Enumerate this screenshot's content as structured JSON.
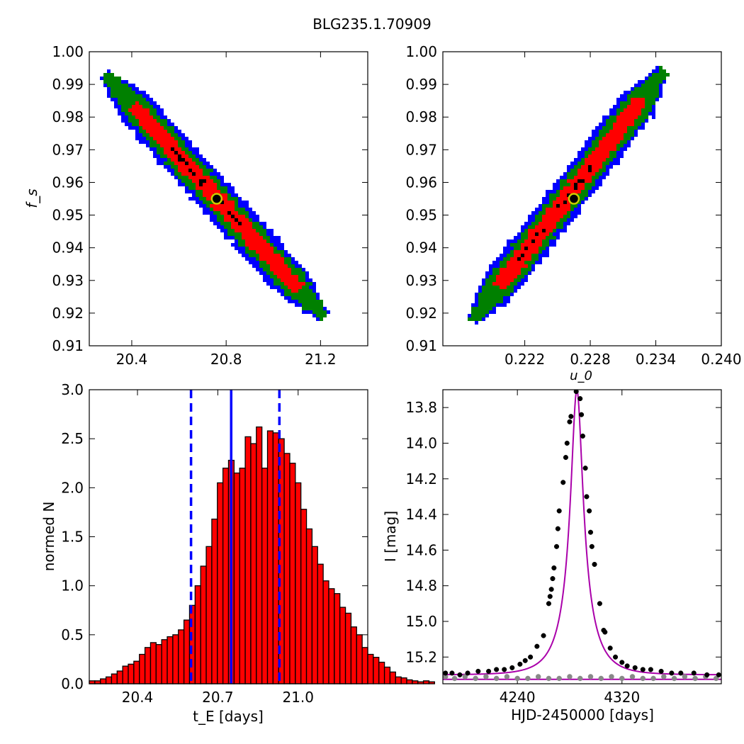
{
  "figure": {
    "title": "BLG235.1.70909"
  },
  "colors": {
    "blue": "#0000ff",
    "green": "#008000",
    "red": "#ff0000",
    "black": "#000000",
    "marker": "#cccc00",
    "model": "#aa00aa",
    "gray": "#888888"
  },
  "chart_data": [
    {
      "type": "heatmap",
      "panel": "top-left",
      "xlabel": "",
      "ylabel": "f_s",
      "xlim": [
        20.22,
        21.4
      ],
      "ylim": [
        0.91,
        1.0
      ],
      "xticks": [
        "20.4",
        "20.8",
        "21.2"
      ],
      "yticks": [
        "0.91",
        "0.92",
        "0.93",
        "0.94",
        "0.95",
        "0.96",
        "0.97",
        "0.98",
        "0.99",
        "1.00"
      ],
      "levels": [
        "blue",
        "green",
        "red",
        "black"
      ],
      "ridge": [
        [
          20.3,
          0.992
        ],
        [
          20.8,
          0.955
        ],
        [
          21.2,
          0.92
        ]
      ],
      "best_fit": {
        "x": 20.76,
        "y": 0.955
      }
    },
    {
      "type": "heatmap",
      "panel": "top-right",
      "xlabel": "u_0",
      "ylabel": "",
      "xlim": [
        0.2145,
        0.24
      ],
      "ylim": [
        0.91,
        1.0
      ],
      "xticks": [
        "0.222",
        "0.228",
        "0.234",
        "0.240"
      ],
      "yticks": [
        "0.91",
        "0.92",
        "0.93",
        "0.94",
        "0.95",
        "0.96",
        "0.97",
        "0.98",
        "0.99",
        "1.00"
      ],
      "levels": [
        "blue",
        "green",
        "red",
        "black"
      ],
      "ridge": [
        [
          0.2175,
          0.919
        ],
        [
          0.2265,
          0.955
        ],
        [
          0.2345,
          0.993
        ]
      ],
      "best_fit": {
        "x": 0.2265,
        "y": 0.955
      }
    },
    {
      "type": "bar",
      "panel": "bottom-left",
      "xlabel": "t_E [days]",
      "ylabel": "normed N",
      "xlim": [
        20.22,
        21.26
      ],
      "ylim": [
        0,
        3.0
      ],
      "xticks": [
        "20.4",
        "20.7",
        "21.0"
      ],
      "yticks": [
        "0.0",
        "0.5",
        "1.0",
        "1.5",
        "2.0",
        "2.5",
        "3.0"
      ],
      "bin_start": 20.22,
      "bin_width": 0.0208,
      "values": [
        0.03,
        0.03,
        0.05,
        0.07,
        0.1,
        0.13,
        0.18,
        0.2,
        0.23,
        0.3,
        0.37,
        0.42,
        0.4,
        0.45,
        0.48,
        0.5,
        0.55,
        0.65,
        0.8,
        1.0,
        1.2,
        1.4,
        1.68,
        2.05,
        2.2,
        2.28,
        2.15,
        2.2,
        2.52,
        2.45,
        2.62,
        2.2,
        2.58,
        2.56,
        2.5,
        2.35,
        2.25,
        2.05,
        1.78,
        1.58,
        1.4,
        1.22,
        1.05,
        0.97,
        0.92,
        0.78,
        0.72,
        0.58,
        0.5,
        0.37,
        0.3,
        0.27,
        0.22,
        0.17,
        0.12,
        0.07,
        0.06,
        0.04,
        0.03,
        0.02,
        0.03,
        0.02
      ],
      "vlines": {
        "median": 20.75,
        "lower": 20.6,
        "upper": 20.93
      }
    },
    {
      "type": "line",
      "panel": "bottom-right",
      "xlabel": "HJD-2450000 [days]",
      "ylabel": "I [mag]",
      "xlim": [
        4183,
        4396
      ],
      "ylim": [
        15.35,
        13.7
      ],
      "y_inverted": true,
      "xticks": [
        "4240",
        "4320"
      ],
      "yticks": [
        "13.8",
        "14.0",
        "14.2",
        "14.4",
        "14.6",
        "14.8",
        "15.0",
        "15.2"
      ],
      "model": {
        "t0": 4285.5,
        "base_mag": 15.3,
        "peak_mag": 13.7,
        "tE": 20.75,
        "u0": 0.2265
      },
      "series": [
        {
          "values": [
            [
              4185,
              15.29
            ],
            [
              4190,
              15.29
            ],
            [
              4196,
              15.3
            ],
            [
              4202,
              15.29
            ],
            [
              4210,
              15.28
            ],
            [
              4218,
              15.28
            ],
            [
              4224,
              15.27
            ],
            [
              4230,
              15.27
            ],
            [
              4236,
              15.26
            ],
            [
              4242,
              15.24
            ],
            [
              4246,
              15.22
            ],
            [
              4250,
              15.2
            ],
            [
              4255,
              15.14
            ],
            [
              4260,
              15.08
            ],
            [
              4264,
              14.9
            ],
            [
              4265,
              14.86
            ],
            [
              4266,
              14.82
            ],
            [
              4267,
              14.76
            ],
            [
              4268,
              14.7
            ],
            [
              4270,
              14.58
            ],
            [
              4271,
              14.48
            ],
            [
              4272,
              14.38
            ],
            [
              4275,
              14.22
            ],
            [
              4277,
              14.08
            ],
            [
              4278,
              14.0
            ],
            [
              4280,
              13.88
            ],
            [
              4281,
              13.85
            ],
            [
              4285,
              13.71
            ],
            [
              4288,
              13.75
            ],
            [
              4289,
              13.84
            ],
            [
              4290,
              13.96
            ],
            [
              4292,
              14.14
            ],
            [
              4293,
              14.3
            ],
            [
              4295,
              14.38
            ],
            [
              4296,
              14.5
            ],
            [
              4297,
              14.58
            ],
            [
              4299,
              14.68
            ],
            [
              4303,
              14.9
            ],
            [
              4306,
              15.05
            ],
            [
              4307,
              15.06
            ],
            [
              4311,
              15.15
            ],
            [
              4315,
              15.2
            ],
            [
              4320,
              15.23
            ],
            [
              4324,
              15.25
            ],
            [
              4330,
              15.26
            ],
            [
              4336,
              15.27
            ],
            [
              4342,
              15.27
            ],
            [
              4350,
              15.28
            ],
            [
              4358,
              15.29
            ],
            [
              4365,
              15.29
            ],
            [
              4375,
              15.29
            ],
            [
              4385,
              15.3
            ],
            [
              4394,
              15.3
            ]
          ]
        },
        {
          "values": [
            [
              4185,
              15.31
            ],
            [
              4192,
              15.32
            ],
            [
              4200,
              15.31
            ],
            [
              4208,
              15.32
            ],
            [
              4216,
              15.31
            ],
            [
              4224,
              15.32
            ],
            [
              4232,
              15.31
            ],
            [
              4240,
              15.32
            ],
            [
              4248,
              15.32
            ],
            [
              4256,
              15.31
            ],
            [
              4264,
              15.32
            ],
            [
              4272,
              15.32
            ],
            [
              4280,
              15.31
            ],
            [
              4288,
              15.32
            ],
            [
              4296,
              15.31
            ],
            [
              4304,
              15.32
            ],
            [
              4312,
              15.31
            ],
            [
              4320,
              15.32
            ],
            [
              4328,
              15.31
            ],
            [
              4336,
              15.32
            ],
            [
              4344,
              15.32
            ],
            [
              4352,
              15.31
            ],
            [
              4360,
              15.32
            ],
            [
              4368,
              15.31
            ],
            [
              4376,
              15.32
            ],
            [
              4384,
              15.31
            ],
            [
              4392,
              15.32
            ]
          ]
        }
      ]
    }
  ]
}
